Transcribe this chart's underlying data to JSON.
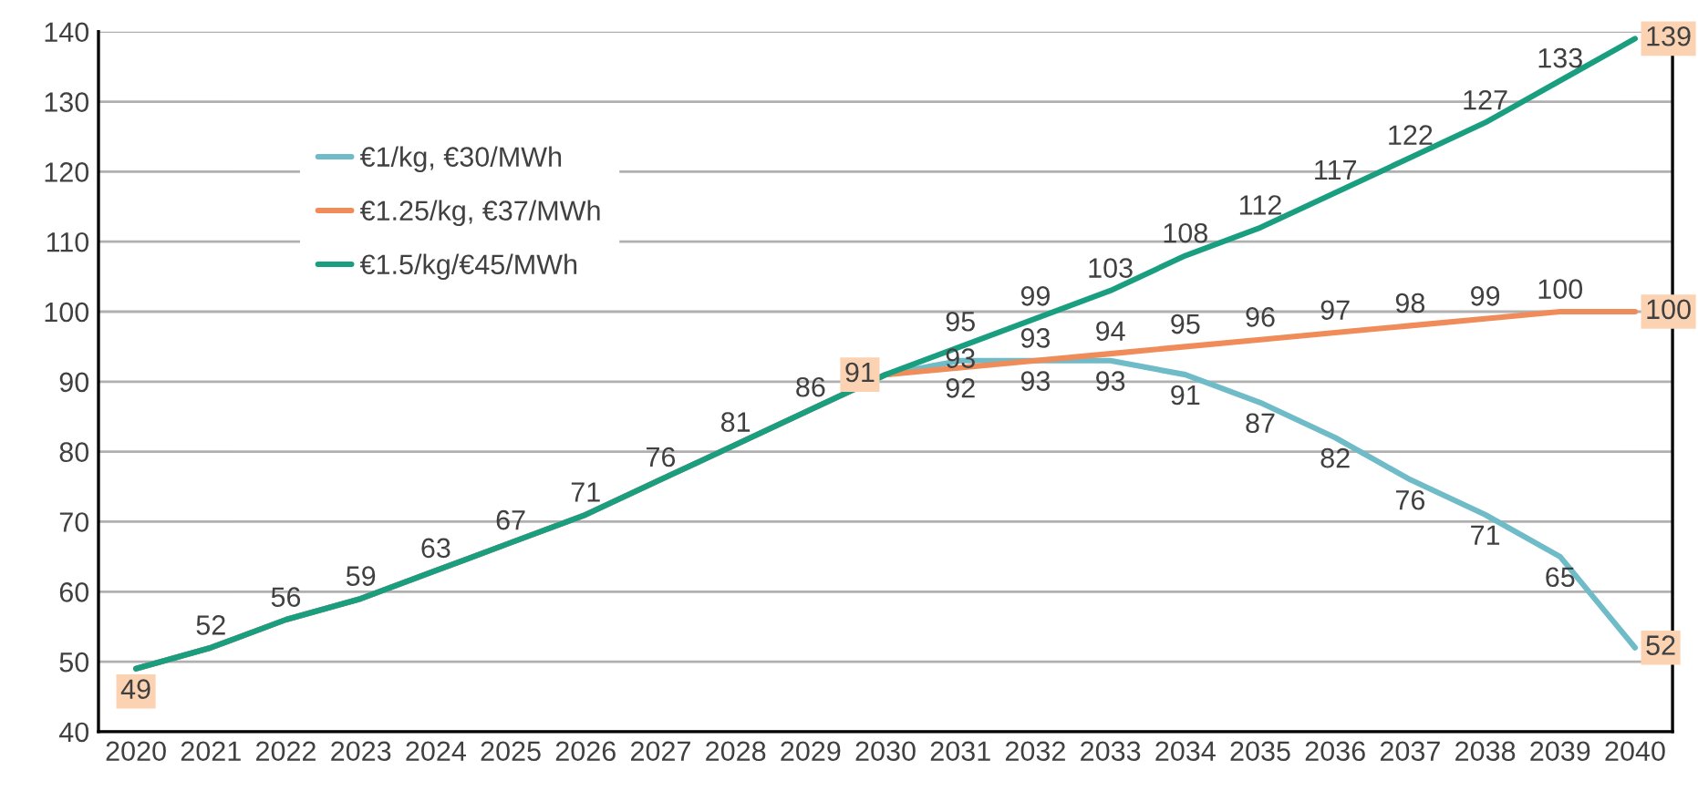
{
  "chart_data": {
    "type": "line",
    "categories": [
      "2020",
      "2021",
      "2022",
      "2023",
      "2024",
      "2025",
      "2026",
      "2027",
      "2028",
      "2029",
      "2030",
      "2031",
      "2032",
      "2033",
      "2034",
      "2035",
      "2036",
      "2037",
      "2038",
      "2039",
      "2040"
    ],
    "series": [
      {
        "name": "€1/kg, €30/MWh",
        "color": "#6fbcc8",
        "values": [
          49,
          52,
          56,
          59,
          63,
          67,
          71,
          76,
          81,
          86,
          91,
          93,
          93,
          93,
          91,
          87,
          82,
          76,
          71,
          65,
          52
        ],
        "value_labels": [
          null,
          null,
          null,
          null,
          null,
          null,
          null,
          null,
          null,
          null,
          null,
          "93",
          "93",
          "93",
          "91",
          "87",
          "82",
          "76",
          "71",
          "65",
          "52"
        ]
      },
      {
        "name": "€1.25/kg, €37/MWh",
        "color": "#f08c5a",
        "values": [
          49,
          52,
          56,
          59,
          63,
          67,
          71,
          76,
          81,
          86,
          91,
          92,
          93,
          94,
          95,
          96,
          97,
          98,
          99,
          100,
          100
        ],
        "value_labels": [
          null,
          null,
          null,
          null,
          null,
          null,
          null,
          null,
          null,
          null,
          "91",
          "92",
          "93",
          "94",
          "95",
          "96",
          "97",
          "98",
          "99",
          "100",
          "100"
        ]
      },
      {
        "name": "€1.5/kg/€45/MWh",
        "color": "#1a9e80",
        "values": [
          49,
          52,
          56,
          59,
          63,
          67,
          71,
          76,
          81,
          86,
          91,
          95,
          99,
          103,
          108,
          112,
          117,
          122,
          127,
          133,
          139
        ],
        "value_labels": [
          "49",
          "52",
          "56",
          "59",
          "63",
          "67",
          "71",
          "76",
          "81",
          "86",
          null,
          "95",
          "99",
          "103",
          "108",
          "112",
          "117",
          "122",
          "127",
          "133",
          "139"
        ]
      }
    ],
    "ylim": [
      40,
      140
    ],
    "yticks": [
      40,
      50,
      60,
      70,
      80,
      90,
      100,
      110,
      120,
      130,
      140
    ],
    "grid": "y",
    "legend": "top left",
    "marker": "none",
    "line_style": "solid"
  }
}
